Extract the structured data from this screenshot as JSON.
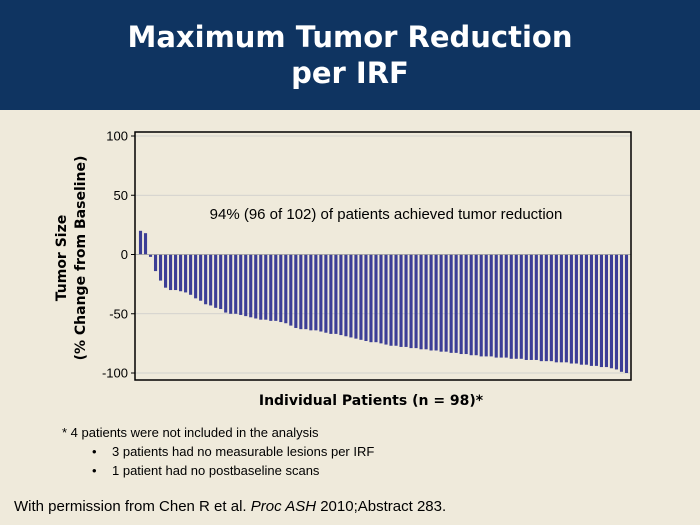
{
  "title": {
    "line1": "Maximum Tumor Reduction",
    "line2": "per IRF"
  },
  "footnotes": {
    "main": "*  4 patients were not included in the analysis",
    "items": [
      "3 patients had no measurable lesions per IRF",
      "1 patient had no postbaseline scans"
    ],
    "bullet": "•"
  },
  "citation": {
    "prefix": "With permission from Chen R et al. ",
    "journal": "Proc ASH",
    "suffix": " 2010;Abstract 283."
  },
  "colors": {
    "bar": "#3c3e96",
    "title_bg": "#0f3461",
    "background": "#efeadb"
  },
  "chart_data": {
    "type": "bar",
    "title": "",
    "annotation": "94% (96 of 102) of patients achieved tumor reduction",
    "xlabel": "Individual Patients (n = 98)*",
    "ylabel_line1": "Tumor Size",
    "ylabel_line2": "(% Change from Baseline)",
    "ylim": [
      -100,
      100
    ],
    "yticks": [
      100,
      50,
      0,
      -50,
      -100
    ],
    "grid": true,
    "legend": "none",
    "values": [
      20,
      18,
      -2,
      -14,
      -22,
      -28,
      -30,
      -30,
      -31,
      -32,
      -34,
      -37,
      -39,
      -42,
      -43,
      -45,
      -46,
      -49,
      -50,
      -50,
      -51,
      -52,
      -53,
      -54,
      -55,
      -55,
      -56,
      -56,
      -57,
      -58,
      -60,
      -62,
      -63,
      -63,
      -64,
      -64,
      -65,
      -66,
      -67,
      -67,
      -68,
      -69,
      -70,
      -71,
      -72,
      -73,
      -74,
      -74,
      -75,
      -76,
      -77,
      -77,
      -78,
      -78,
      -79,
      -79,
      -80,
      -80,
      -81,
      -81,
      -82,
      -82,
      -83,
      -83,
      -84,
      -84,
      -85,
      -85,
      -86,
      -86,
      -86,
      -87,
      -87,
      -87,
      -88,
      -88,
      -88,
      -89,
      -89,
      -89,
      -90,
      -90,
      -90,
      -91,
      -91,
      -91,
      -92,
      -92,
      -93,
      -93,
      -94,
      -94,
      -95,
      -95,
      -96,
      -97,
      -99,
      -100
    ]
  }
}
